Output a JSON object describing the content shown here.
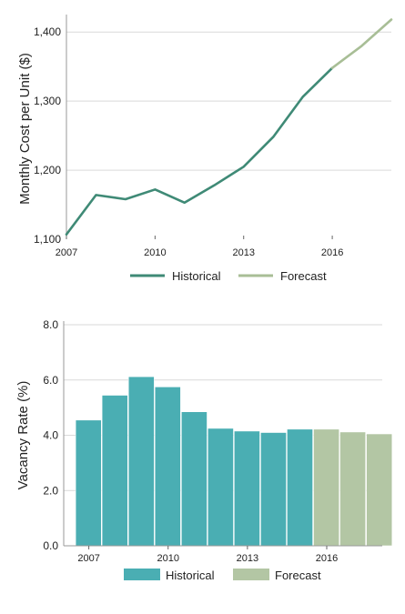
{
  "chart_data": [
    {
      "type": "line",
      "ylabel": "Monthly Cost per Unit ($)",
      "xlabel": "",
      "ylim": [
        1100,
        1420
      ],
      "xlim": [
        2007,
        2018
      ],
      "y_ticks": [
        {
          "value": 1100,
          "label": "1,100"
        },
        {
          "value": 1200,
          "label": "1,200"
        },
        {
          "value": 1300,
          "label": "1,300"
        },
        {
          "value": 1400,
          "label": "1,400"
        }
      ],
      "x_ticks": [
        {
          "value": 2007,
          "label": "2007"
        },
        {
          "value": 2010,
          "label": "2010"
        },
        {
          "value": 2013,
          "label": "2013"
        },
        {
          "value": 2016,
          "label": "2016"
        }
      ],
      "grid": "horizontal",
      "legend_position": "bottom",
      "series": [
        {
          "name": "Historical",
          "color": "#3f8a76",
          "x": [
            2007,
            2008,
            2009,
            2010,
            2011,
            2012,
            2013,
            2014,
            2015,
            2016
          ],
          "values": [
            1107,
            1164,
            1158,
            1172,
            1153,
            1178,
            1205,
            1248,
            1306,
            1348
          ]
        },
        {
          "name": "Forecast",
          "color": "#a8be96",
          "x": [
            2016,
            2017,
            2018
          ],
          "values": [
            1348,
            1380,
            1418
          ]
        }
      ]
    },
    {
      "type": "bar",
      "ylabel": "Vacancy Rate (%)",
      "xlabel": "",
      "ylim": [
        0,
        8.0
      ],
      "xlim": [
        2006.55,
        2018.6
      ],
      "y_ticks": [
        {
          "value": 0,
          "label": "0.0"
        },
        {
          "value": 2,
          "label": "2.0"
        },
        {
          "value": 4,
          "label": "4.0"
        },
        {
          "value": 6,
          "label": "6.0"
        },
        {
          "value": 8,
          "label": "8.0"
        }
      ],
      "x_ticks": [
        {
          "value": 2007,
          "label": "2007"
        },
        {
          "value": 2010,
          "label": "2010"
        },
        {
          "value": 2013,
          "label": "2013"
        },
        {
          "value": 2016,
          "label": "2016"
        }
      ],
      "grid": "horizontal",
      "legend_position": "bottom",
      "series": [
        {
          "name": "Historical",
          "color": "#4aaeb3",
          "x": [
            2007,
            2008,
            2009,
            2010,
            2011,
            2012,
            2013,
            2014,
            2015
          ],
          "values": [
            4.55,
            5.45,
            6.12,
            5.75,
            4.85,
            4.25,
            4.15,
            4.1,
            4.22
          ]
        },
        {
          "name": "Forecast",
          "color": "#b3c6a4",
          "x": [
            2016,
            2017,
            2018
          ],
          "values": [
            4.22,
            4.12,
            4.05
          ]
        }
      ]
    }
  ]
}
